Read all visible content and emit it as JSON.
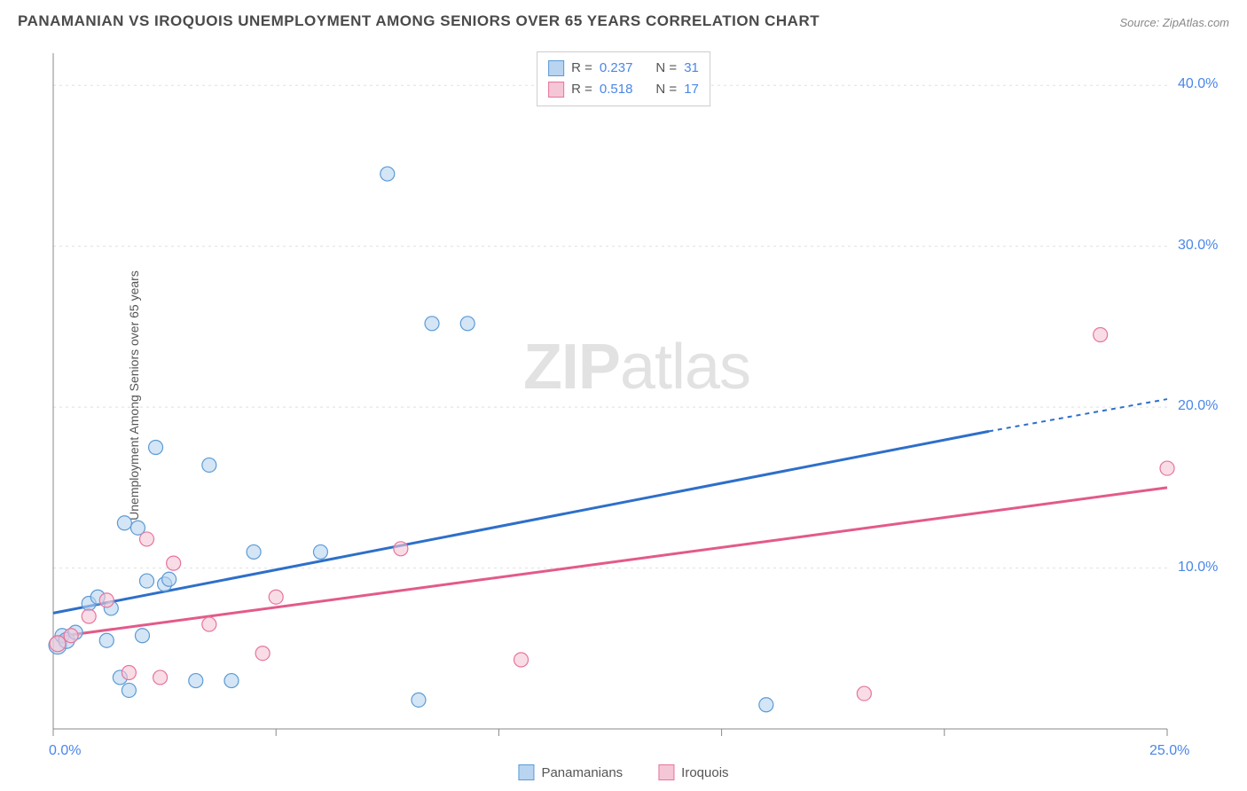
{
  "title": "PANAMANIAN VS IROQUOIS UNEMPLOYMENT AMONG SENIORS OVER 65 YEARS CORRELATION CHART",
  "source": "Source: ZipAtlas.com",
  "y_axis_label": "Unemployment Among Seniors over 65 years",
  "watermark": {
    "bold": "ZIP",
    "rest": "atlas"
  },
  "chart": {
    "type": "scatter-with-regression",
    "xlim": [
      0,
      25
    ],
    "ylim": [
      0,
      42
    ],
    "x_ticks": [
      0,
      5,
      10,
      15,
      20,
      25
    ],
    "x_tick_labels": {
      "0": "0.0%",
      "25": "25.0%"
    },
    "y_ticks": [
      10,
      20,
      30,
      40
    ],
    "y_tick_labels": {
      "10": "10.0%",
      "20": "20.0%",
      "30": "30.0%",
      "40": "40.0%"
    },
    "grid_color": "#e0e0e0",
    "axis_color": "#888888",
    "background": "#ffffff",
    "series": [
      {
        "name": "Panamanians",
        "fill": "#b8d4f0",
        "stroke": "#5b9bd5",
        "line_color": "#2e6fc9",
        "fill_opacity": 0.6,
        "marker_radius": 8,
        "R": "0.237",
        "N": "31",
        "regression": {
          "x1": 0,
          "y1": 7.2,
          "x2_solid": 21,
          "y2_solid": 18.5,
          "x2_dash": 25,
          "y2_dash": 20.5
        },
        "points": [
          {
            "x": 0.1,
            "y": 5.2,
            "r": 10
          },
          {
            "x": 0.2,
            "y": 5.8,
            "r": 8
          },
          {
            "x": 0.3,
            "y": 5.5,
            "r": 9
          },
          {
            "x": 0.5,
            "y": 6.0,
            "r": 8
          },
          {
            "x": 0.8,
            "y": 7.8,
            "r": 8
          },
          {
            "x": 1.0,
            "y": 8.2,
            "r": 8
          },
          {
            "x": 1.2,
            "y": 5.5,
            "r": 8
          },
          {
            "x": 1.3,
            "y": 7.5,
            "r": 8
          },
          {
            "x": 1.5,
            "y": 3.2,
            "r": 8
          },
          {
            "x": 1.6,
            "y": 12.8,
            "r": 8
          },
          {
            "x": 1.7,
            "y": 2.4,
            "r": 8
          },
          {
            "x": 1.9,
            "y": 12.5,
            "r": 8
          },
          {
            "x": 2.0,
            "y": 5.8,
            "r": 8
          },
          {
            "x": 2.1,
            "y": 9.2,
            "r": 8
          },
          {
            "x": 2.3,
            "y": 17.5,
            "r": 8
          },
          {
            "x": 2.5,
            "y": 9.0,
            "r": 8
          },
          {
            "x": 2.6,
            "y": 9.3,
            "r": 8
          },
          {
            "x": 3.2,
            "y": 3.0,
            "r": 8
          },
          {
            "x": 3.5,
            "y": 16.4,
            "r": 8
          },
          {
            "x": 4.0,
            "y": 3.0,
            "r": 8
          },
          {
            "x": 4.5,
            "y": 11.0,
            "r": 8
          },
          {
            "x": 6.0,
            "y": 11.0,
            "r": 8
          },
          {
            "x": 7.5,
            "y": 34.5,
            "r": 8
          },
          {
            "x": 8.2,
            "y": 1.8,
            "r": 8
          },
          {
            "x": 8.5,
            "y": 25.2,
            "r": 8
          },
          {
            "x": 9.3,
            "y": 25.2,
            "r": 8
          },
          {
            "x": 16.0,
            "y": 1.5,
            "r": 8
          }
        ]
      },
      {
        "name": "Iroquois",
        "fill": "#f5c6d6",
        "stroke": "#e8749c",
        "line_color": "#e35a8a",
        "fill_opacity": 0.6,
        "marker_radius": 8,
        "R": "0.518",
        "N": "17",
        "regression": {
          "x1": 0,
          "y1": 5.7,
          "x2_solid": 25,
          "y2_solid": 15.0,
          "x2_dash": 25,
          "y2_dash": 15.0
        },
        "points": [
          {
            "x": 0.1,
            "y": 5.3,
            "r": 9
          },
          {
            "x": 0.4,
            "y": 5.8,
            "r": 8
          },
          {
            "x": 0.8,
            "y": 7.0,
            "r": 8
          },
          {
            "x": 1.2,
            "y": 8.0,
            "r": 8
          },
          {
            "x": 1.7,
            "y": 3.5,
            "r": 8
          },
          {
            "x": 2.1,
            "y": 11.8,
            "r": 8
          },
          {
            "x": 2.4,
            "y": 3.2,
            "r": 8
          },
          {
            "x": 2.7,
            "y": 10.3,
            "r": 8
          },
          {
            "x": 3.5,
            "y": 6.5,
            "r": 8
          },
          {
            "x": 4.7,
            "y": 4.7,
            "r": 8
          },
          {
            "x": 5.0,
            "y": 8.2,
            "r": 8
          },
          {
            "x": 7.8,
            "y": 11.2,
            "r": 8
          },
          {
            "x": 10.5,
            "y": 4.3,
            "r": 8
          },
          {
            "x": 18.2,
            "y": 2.2,
            "r": 8
          },
          {
            "x": 23.5,
            "y": 24.5,
            "r": 8
          },
          {
            "x": 25.0,
            "y": 16.2,
            "r": 8
          }
        ]
      }
    ]
  },
  "legend_top": [
    {
      "swatch_fill": "#b8d4f0",
      "swatch_stroke": "#5b9bd5",
      "R_label": "R =",
      "R_val": "0.237",
      "N_label": "N =",
      "N_val": "31"
    },
    {
      "swatch_fill": "#f5c6d6",
      "swatch_stroke": "#e8749c",
      "R_label": "R =",
      "R_val": "0.518",
      "N_label": "N =",
      "N_val": "17"
    }
  ],
  "legend_bottom": [
    {
      "swatch_fill": "#b8d4f0",
      "swatch_stroke": "#5b9bd5",
      "label": "Panamanians"
    },
    {
      "swatch_fill": "#f5c6d6",
      "swatch_stroke": "#e8749c",
      "label": "Iroquois"
    }
  ]
}
